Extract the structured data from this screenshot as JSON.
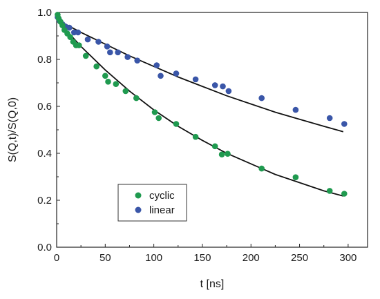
{
  "chart_data": {
    "type": "scatter",
    "xlabel": "t [ns]",
    "ylabel": "S(Q,t)/S(Q,0)",
    "xlim": [
      0,
      320
    ],
    "ylim": [
      0,
      1.0
    ],
    "x_ticks": [
      0,
      50,
      100,
      150,
      200,
      250,
      300
    ],
    "x_tick_labels": [
      "0",
      "50",
      "100",
      "150",
      "200",
      "250",
      "300"
    ],
    "y_ticks": [
      0.0,
      0.2,
      0.4,
      0.6,
      0.8,
      1.0
    ],
    "y_tick_labels": [
      "0.0",
      "0.2",
      "0.4",
      "0.6",
      "0.8",
      "1.0"
    ],
    "grid": false,
    "legend_position": "lower-left",
    "series": [
      {
        "name": "cyclic",
        "color": "#1f9a4f",
        "points": [
          [
            1,
            0.99
          ],
          [
            2,
            0.975
          ],
          [
            4,
            0.96
          ],
          [
            6,
            0.945
          ],
          [
            8,
            0.925
          ],
          [
            11,
            0.91
          ],
          [
            14,
            0.895
          ],
          [
            17,
            0.875
          ],
          [
            20,
            0.86
          ],
          [
            23,
            0.86
          ],
          [
            30,
            0.815
          ],
          [
            41,
            0.77
          ],
          [
            50,
            0.73
          ],
          [
            53,
            0.705
          ],
          [
            61,
            0.695
          ],
          [
            71,
            0.665
          ],
          [
            82,
            0.635
          ],
          [
            101,
            0.575
          ],
          [
            105,
            0.55
          ],
          [
            123,
            0.525
          ],
          [
            143,
            0.47
          ],
          [
            163,
            0.43
          ],
          [
            170,
            0.395
          ],
          [
            176,
            0.398
          ],
          [
            211,
            0.335
          ],
          [
            246,
            0.298
          ],
          [
            281,
            0.24
          ],
          [
            296,
            0.228
          ]
        ]
      },
      {
        "name": "linear",
        "color": "#3a56a8",
        "points": [
          [
            1,
            0.98
          ],
          [
            3,
            0.965
          ],
          [
            6,
            0.95
          ],
          [
            9,
            0.94
          ],
          [
            13,
            0.935
          ],
          [
            18,
            0.915
          ],
          [
            22,
            0.915
          ],
          [
            32,
            0.885
          ],
          [
            43,
            0.875
          ],
          [
            52,
            0.855
          ],
          [
            55,
            0.83
          ],
          [
            63,
            0.83
          ],
          [
            73,
            0.81
          ],
          [
            83,
            0.795
          ],
          [
            103,
            0.775
          ],
          [
            107,
            0.73
          ],
          [
            123,
            0.74
          ],
          [
            143,
            0.715
          ],
          [
            163,
            0.69
          ],
          [
            171,
            0.685
          ],
          [
            177,
            0.665
          ],
          [
            211,
            0.635
          ],
          [
            246,
            0.585
          ],
          [
            281,
            0.55
          ],
          [
            296,
            0.525
          ]
        ]
      }
    ],
    "fit_curves": [
      {
        "series": "cyclic",
        "color": "#111111",
        "points": [
          [
            0,
            0.97
          ],
          [
            25,
            0.855
          ],
          [
            50,
            0.755
          ],
          [
            75,
            0.665
          ],
          [
            100,
            0.585
          ],
          [
            125,
            0.515
          ],
          [
            150,
            0.455
          ],
          [
            175,
            0.4
          ],
          [
            200,
            0.355
          ],
          [
            225,
            0.31
          ],
          [
            250,
            0.275
          ],
          [
            275,
            0.24
          ],
          [
            295,
            0.218
          ]
        ]
      },
      {
        "series": "linear",
        "color": "#111111",
        "points": [
          [
            0,
            0.97
          ],
          [
            25,
            0.915
          ],
          [
            50,
            0.865
          ],
          [
            75,
            0.815
          ],
          [
            100,
            0.77
          ],
          [
            125,
            0.725
          ],
          [
            150,
            0.685
          ],
          [
            175,
            0.645
          ],
          [
            200,
            0.61
          ],
          [
            225,
            0.575
          ],
          [
            250,
            0.545
          ],
          [
            275,
            0.515
          ],
          [
            295,
            0.492
          ]
        ]
      }
    ]
  }
}
